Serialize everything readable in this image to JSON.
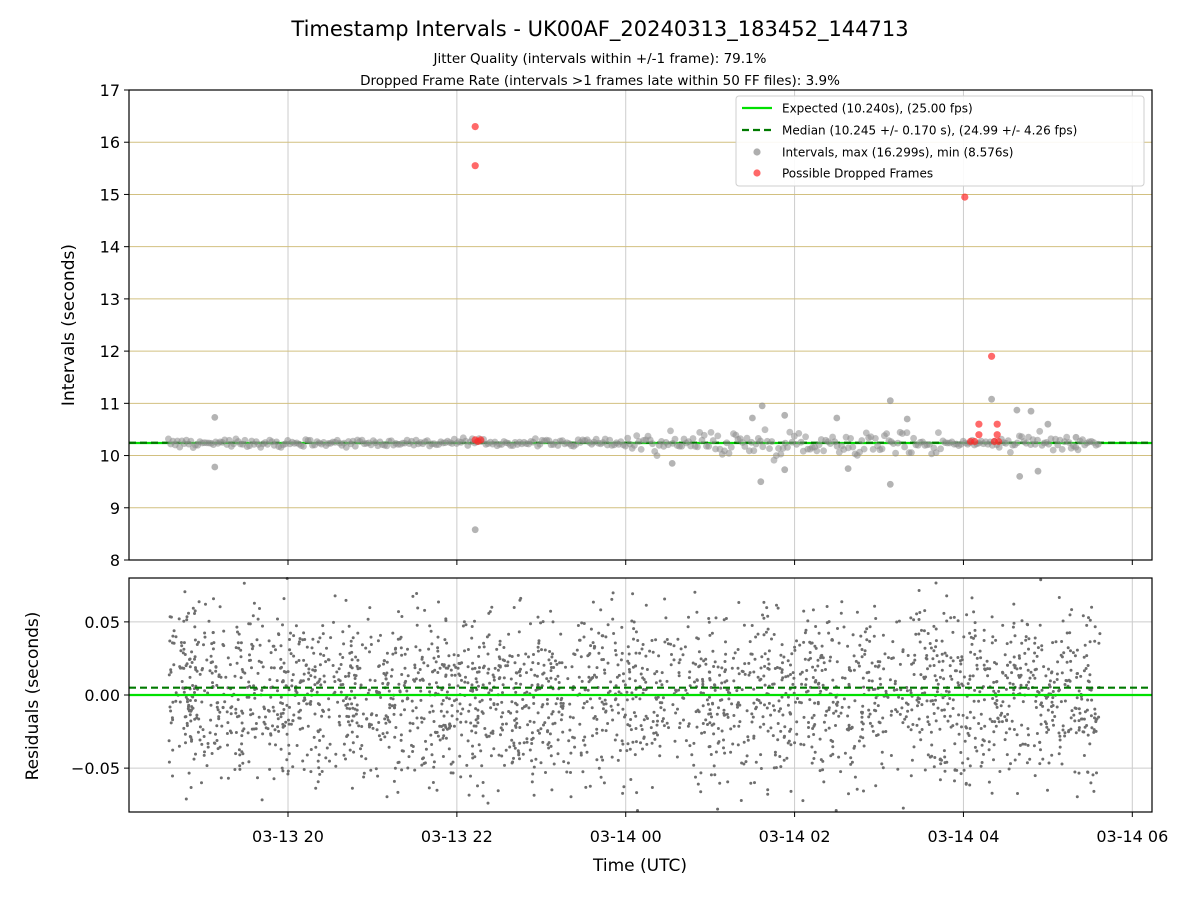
{
  "title": "Timestamp Intervals - UK00AF_20240313_183452_144713",
  "subtitle_1": "Jitter Quality (intervals within +/-1 frame): 79.1%",
  "subtitle_2": "Dropped Frame Rate (intervals >1 frames late within 50 FF files): 3.9%",
  "colors": {
    "expected": "#00e000",
    "median": "#007a00",
    "intervals": "#8c8c8c",
    "dropped": "#ff2a2a",
    "hgrid_top": "#d2c080",
    "grid": "#cccccc",
    "residuals": "#6e6e6e"
  },
  "chart_data": [
    {
      "type": "scatter",
      "ylabel": "Intervals (seconds)",
      "ylim": [
        8,
        17
      ],
      "yticks": [
        "8",
        "9",
        "10",
        "11",
        "12",
        "13",
        "14",
        "15",
        "16",
        "17"
      ],
      "xlim": [
        "03-13 18:07",
        "03-14 06:14"
      ],
      "legend_position": "top-right",
      "expected_line": 10.24,
      "median_line": 10.245,
      "legend": [
        "Expected (10.240s), (25.00 fps)",
        "Median (10.245 +/- 0.170 s), (24.99 +/- 4.26 fps)",
        "Intervals, max (16.299s), min (8.576s)",
        "Possible Dropped Frames"
      ],
      "series": [
        {
          "name": "Intervals, max (16.299s), min (8.576s)",
          "points": [
            [
              "03-13 19:08",
              10.73
            ],
            [
              "03-13 19:08",
              9.78
            ],
            [
              "03-13 22:13",
              8.58
            ],
            [
              "03-14 00:33",
              9.85
            ],
            [
              "03-14 01:30",
              10.72
            ],
            [
              "03-14 01:37",
              10.95
            ],
            [
              "03-14 01:36",
              9.5
            ],
            [
              "03-14 01:53",
              10.77
            ],
            [
              "03-14 01:53",
              9.73
            ],
            [
              "03-14 02:30",
              10.72
            ],
            [
              "03-14 02:38",
              9.75
            ],
            [
              "03-14 03:08",
              11.05
            ],
            [
              "03-14 03:08",
              9.45
            ],
            [
              "03-14 03:20",
              10.7
            ],
            [
              "03-14 04:20",
              11.08
            ],
            [
              "03-14 04:38",
              10.87
            ],
            [
              "03-14 04:48",
              10.85
            ],
            [
              "03-14 04:40",
              9.6
            ],
            [
              "03-14 04:53",
              9.7
            ],
            [
              "03-14 05:00",
              10.6
            ],
            [
              "03-14 05:20",
              10.35
            ]
          ]
        },
        {
          "name": "Possible Dropped Frames",
          "points": [
            [
              "03-13 22:13",
              16.3
            ],
            [
              "03-13 22:13",
              15.55
            ],
            [
              "03-13 22:13",
              10.3
            ],
            [
              "03-13 22:15",
              10.27
            ],
            [
              "03-13 22:17",
              10.3
            ],
            [
              "03-14 04:01",
              14.95
            ],
            [
              "03-14 04:20",
              11.9
            ],
            [
              "03-14 04:11",
              10.6
            ],
            [
              "03-14 04:24",
              10.6
            ],
            [
              "03-14 04:11",
              10.4
            ],
            [
              "03-14 04:24",
              10.4
            ],
            [
              "03-14 04:05",
              10.27
            ],
            [
              "03-14 04:08",
              10.27
            ],
            [
              "03-14 04:22",
              10.27
            ],
            [
              "03-14 04:25",
              10.27
            ]
          ]
        }
      ]
    },
    {
      "type": "scatter",
      "ylabel": "Residuals (seconds)",
      "xlabel": "Time (UTC)",
      "ylim": [
        -0.08,
        0.08
      ],
      "yticks": [
        "−0.05",
        "0.00",
        "0.05"
      ],
      "xticks": [
        "03-13 20",
        "03-13 22",
        "03-14 00",
        "03-14 02",
        "03-14 04",
        "03-14 06"
      ],
      "expected_line": 0.0,
      "median_line": 0.005,
      "series": [
        {
          "name": "",
          "time_range": [
            "03-13 18:35",
            "03-14 05:37"
          ],
          "count": 2600,
          "spread": 0.03
        }
      ]
    }
  ]
}
